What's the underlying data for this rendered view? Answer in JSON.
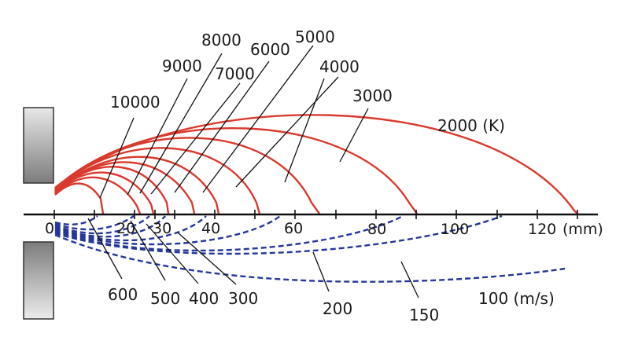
{
  "axis": {
    "ticks": [
      "0",
      "20",
      "30",
      "40",
      "60",
      "80",
      "100",
      "120"
    ],
    "unit_label": "(mm)"
  },
  "temperature_curves": {
    "color": "#d93a2e",
    "labels": [
      "10000",
      "9000",
      "8000",
      "7000",
      "6000",
      "5000",
      "4000",
      "3000",
      "2000 (K)"
    ]
  },
  "velocity_curves": {
    "color": "#25379a",
    "labels": [
      "600",
      "500",
      "400",
      "300",
      "200",
      "150",
      "100 (m/s)"
    ]
  },
  "electrodes": {
    "fill_top": "#8a8a8a",
    "fill_bottom": "#e6e6e6"
  }
}
